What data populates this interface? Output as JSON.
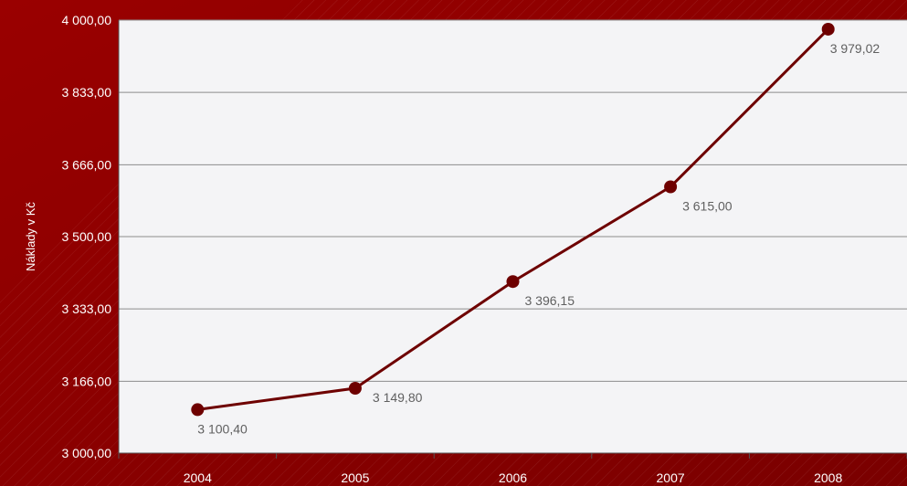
{
  "colors": {
    "background": "#9a0000",
    "background_dark": "#7a0000",
    "plot_background": "#f4f4f6",
    "gridline": "#8c8c8c",
    "series_line": "#6e0000",
    "marker": "#6e0000",
    "data_label": "#606060",
    "axis_text": "#ffffff"
  },
  "chart_data": {
    "type": "line",
    "title": "",
    "xlabel": "",
    "ylabel": "Náklady v Kč",
    "categories": [
      "2004",
      "2005",
      "2006",
      "2007",
      "2008"
    ],
    "series": [
      {
        "values": [
          3100.4,
          3149.8,
          3396.15,
          3615.0,
          3979.02
        ],
        "value_labels": [
          "3 100,40",
          "3 149,80",
          "3 396,15",
          "3 615,00",
          "3 979,02"
        ]
      }
    ],
    "ylim": [
      3000,
      4000
    ],
    "yticks": [
      3000,
      3166,
      3333,
      3500,
      3666,
      3833,
      4000
    ],
    "ytick_labels": [
      "3 000,00",
      "3 166,00",
      "3 333,00",
      "3 500,00",
      "3 666,00",
      "3 833,00",
      "4 000,00"
    ],
    "grid": true,
    "legend": "none"
  }
}
